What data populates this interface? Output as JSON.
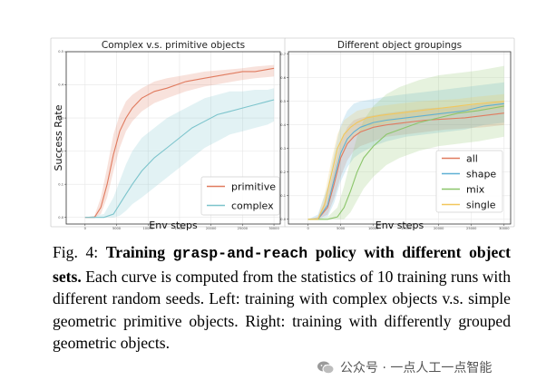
{
  "chart_data": [
    {
      "type": "line",
      "title": "Complex v.s. primitive objects",
      "xlabel": "Env steps",
      "ylabel": "Success Rate",
      "xlim": [
        -3000,
        31000
      ],
      "ylim": [
        -0.02,
        0.5
      ],
      "xticks": [
        0,
        5000,
        10000,
        15000,
        20000,
        25000,
        30000
      ],
      "yticks": [
        0.0,
        0.1,
        0.2,
        0.3,
        0.4,
        0.5
      ],
      "grid": true,
      "legend_position": "bottom-right",
      "series": [
        {
          "name": "primitive",
          "color": "#e07b5f",
          "x": [
            0,
            1500,
            2500,
            3500,
            4500,
            5500,
            6500,
            7500,
            9000,
            11000,
            13000,
            16000,
            19000,
            22000,
            25000,
            27000,
            30000
          ],
          "y": [
            0.0,
            0.0,
            0.03,
            0.1,
            0.19,
            0.26,
            0.3,
            0.33,
            0.36,
            0.38,
            0.39,
            0.41,
            0.42,
            0.43,
            0.44,
            0.44,
            0.45
          ],
          "lower": [
            0.0,
            0.0,
            0.01,
            0.06,
            0.14,
            0.21,
            0.26,
            0.29,
            0.32,
            0.345,
            0.36,
            0.38,
            0.395,
            0.405,
            0.415,
            0.42,
            0.425
          ],
          "upper": [
            0.0,
            0.005,
            0.06,
            0.15,
            0.25,
            0.31,
            0.35,
            0.37,
            0.39,
            0.41,
            0.42,
            0.43,
            0.44,
            0.445,
            0.45,
            0.455,
            0.46
          ]
        },
        {
          "name": "complex",
          "color": "#7cc4cc",
          "x": [
            0,
            3000,
            4500,
            5500,
            6500,
            7500,
            9000,
            11000,
            13000,
            15000,
            17000,
            19000,
            21000,
            23000,
            25000,
            27000,
            29000,
            30000
          ],
          "y": [
            0.0,
            0.0,
            0.01,
            0.04,
            0.07,
            0.1,
            0.14,
            0.18,
            0.21,
            0.24,
            0.27,
            0.29,
            0.31,
            0.32,
            0.33,
            0.34,
            0.35,
            0.355
          ],
          "lower": [
            0.0,
            0.0,
            0.0,
            0.005,
            0.02,
            0.04,
            0.06,
            0.09,
            0.12,
            0.15,
            0.18,
            0.21,
            0.23,
            0.25,
            0.26,
            0.27,
            0.28,
            0.29
          ],
          "upper": [
            0.0,
            0.01,
            0.06,
            0.11,
            0.16,
            0.2,
            0.24,
            0.27,
            0.3,
            0.32,
            0.34,
            0.36,
            0.37,
            0.38,
            0.38,
            0.385,
            0.385,
            0.39
          ]
        }
      ]
    },
    {
      "type": "line",
      "title": "Different object groupings",
      "xlabel": "Env steps",
      "ylabel": "",
      "xlim": [
        -3000,
        31000
      ],
      "ylim": [
        -0.02,
        0.71
      ],
      "xticks": [
        0,
        5000,
        10000,
        15000,
        20000,
        25000,
        30000
      ],
      "yticks": [
        0.0,
        0.1,
        0.2,
        0.3,
        0.4,
        0.5,
        0.6,
        0.7
      ],
      "grid": true,
      "legend_position": "bottom-right",
      "series": [
        {
          "name": "all",
          "color": "#e07b5f",
          "x": [
            0,
            1500,
            3000,
            4000,
            5000,
            6000,
            7000,
            8000,
            10000,
            12000,
            15000,
            18000,
            21000,
            24000,
            27000,
            30000
          ],
          "y": [
            0.0,
            0.0,
            0.05,
            0.15,
            0.26,
            0.32,
            0.35,
            0.37,
            0.39,
            0.4,
            0.41,
            0.42,
            0.425,
            0.43,
            0.44,
            0.45
          ],
          "lower": [
            0.0,
            0.0,
            0.02,
            0.09,
            0.18,
            0.25,
            0.29,
            0.31,
            0.33,
            0.35,
            0.36,
            0.37,
            0.38,
            0.385,
            0.39,
            0.4
          ],
          "upper": [
            0.0,
            0.01,
            0.1,
            0.22,
            0.33,
            0.39,
            0.42,
            0.43,
            0.44,
            0.45,
            0.46,
            0.47,
            0.475,
            0.48,
            0.49,
            0.5
          ]
        },
        {
          "name": "shape",
          "color": "#5fb0d4",
          "x": [
            0,
            1500,
            3000,
            4000,
            5000,
            6000,
            7000,
            8000,
            10000,
            12000,
            15000,
            18000,
            21000,
            24000,
            27000,
            30000
          ],
          "y": [
            0.0,
            0.0,
            0.06,
            0.17,
            0.28,
            0.34,
            0.37,
            0.39,
            0.41,
            0.42,
            0.43,
            0.44,
            0.45,
            0.46,
            0.48,
            0.49
          ],
          "lower": [
            0.0,
            0.0,
            0.01,
            0.07,
            0.16,
            0.22,
            0.26,
            0.28,
            0.31,
            0.33,
            0.35,
            0.36,
            0.37,
            0.38,
            0.4,
            0.41
          ],
          "upper": [
            0.0,
            0.02,
            0.14,
            0.28,
            0.4,
            0.46,
            0.49,
            0.5,
            0.51,
            0.52,
            0.53,
            0.54,
            0.55,
            0.56,
            0.57,
            0.58
          ]
        },
        {
          "name": "mix",
          "color": "#8bc56a",
          "x": [
            0,
            3000,
            4500,
            5500,
            6500,
            7500,
            8500,
            10000,
            12000,
            14000,
            17000,
            20000,
            23000,
            26000,
            28000,
            30000
          ],
          "y": [
            0.0,
            0.0,
            0.01,
            0.05,
            0.12,
            0.2,
            0.26,
            0.31,
            0.36,
            0.38,
            0.41,
            0.43,
            0.45,
            0.46,
            0.47,
            0.48
          ],
          "lower": [
            0.0,
            0.0,
            0.0,
            0.0,
            0.03,
            0.08,
            0.13,
            0.18,
            0.23,
            0.26,
            0.29,
            0.31,
            0.32,
            0.33,
            0.34,
            0.35
          ],
          "upper": [
            0.0,
            0.01,
            0.05,
            0.14,
            0.25,
            0.35,
            0.42,
            0.48,
            0.53,
            0.56,
            0.59,
            0.61,
            0.62,
            0.63,
            0.64,
            0.65
          ]
        },
        {
          "name": "single",
          "color": "#f2c75c",
          "x": [
            0,
            1500,
            2500,
            3500,
            4500,
            5500,
            6500,
            7500,
            9000,
            11000,
            14000,
            17000,
            20000,
            23000,
            26000,
            30000
          ],
          "y": [
            0.0,
            0.0,
            0.06,
            0.18,
            0.3,
            0.36,
            0.39,
            0.41,
            0.43,
            0.44,
            0.45,
            0.46,
            0.47,
            0.48,
            0.49,
            0.5
          ],
          "lower": [
            0.0,
            0.0,
            0.03,
            0.12,
            0.23,
            0.3,
            0.34,
            0.36,
            0.39,
            0.4,
            0.42,
            0.43,
            0.44,
            0.45,
            0.46,
            0.47
          ],
          "upper": [
            0.0,
            0.01,
            0.1,
            0.24,
            0.36,
            0.42,
            0.44,
            0.46,
            0.47,
            0.48,
            0.49,
            0.5,
            0.505,
            0.51,
            0.52,
            0.53
          ]
        }
      ]
    }
  ],
  "caption": {
    "fig_label": "Fig. 4:",
    "bold_lead": "Training",
    "bold_mono": "grasp-and-reach",
    "bold_tail": "policy with different object sets.",
    "body": "Each curve is computed from the statistics of 10 training runs with different random seeds. Left: training with complex objects v.s. simple geometric primitive objects. Right: training with differently grouped geometric objects."
  },
  "watermark": {
    "text": "公众号 · 一点人工一点智能"
  }
}
